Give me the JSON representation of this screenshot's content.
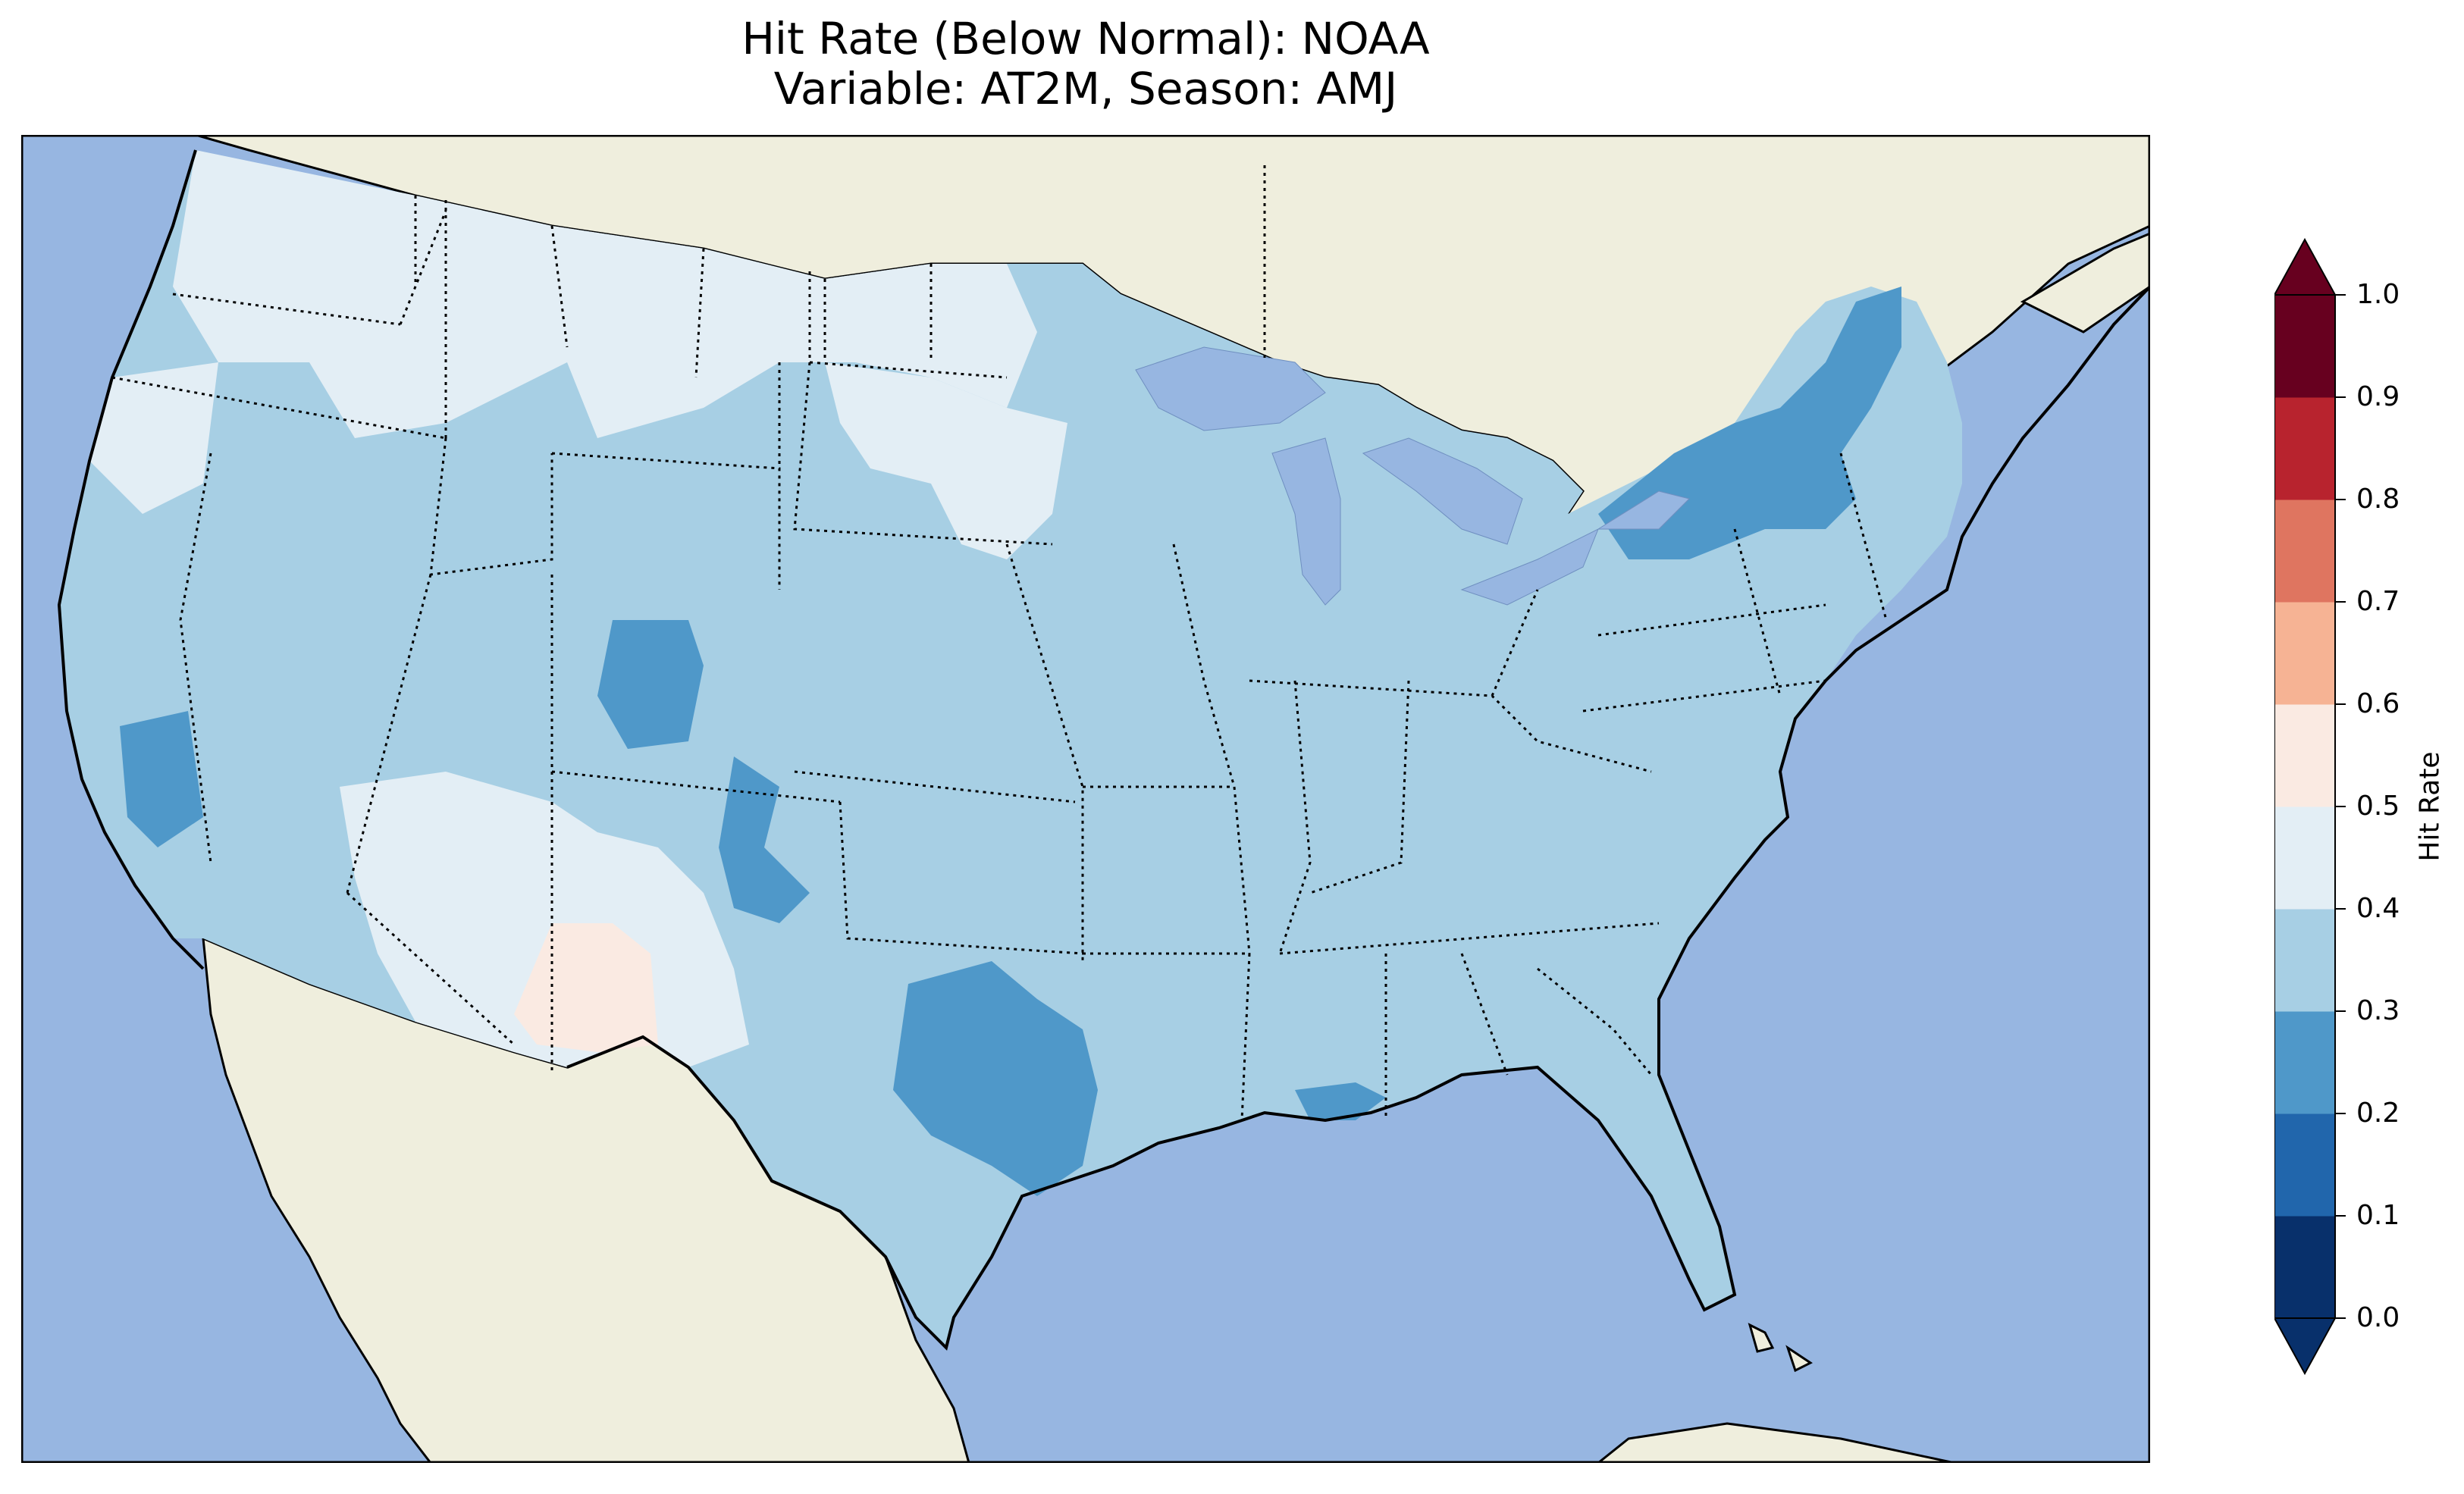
{
  "title": {
    "line1": "Hit Rate (Below Normal): NOAA",
    "line2": "Variable: AT2M, Season: AMJ"
  },
  "colorbar": {
    "label": "Hit Rate",
    "ticks": [
      "0.0",
      "0.1",
      "0.2",
      "0.3",
      "0.4",
      "0.5",
      "0.6",
      "0.7",
      "0.8",
      "0.9",
      "1.0"
    ],
    "colors": [
      "#08306b",
      "#2166ac",
      "#4f98c9",
      "#a7cfe4",
      "#e3eef5",
      "#faeae2",
      "#f6b394",
      "#df7560",
      "#b8232e",
      "#67001f"
    ],
    "extend": "both",
    "range": [
      0.0,
      1.0
    ]
  },
  "map": {
    "region": "Continental United States",
    "ocean_color": "#97b6e1",
    "land_color": "#efeedd",
    "dominant_value_range": [
      0.3,
      0.4
    ],
    "regions": [
      {
        "name": "base-conus",
        "value_bin": [
          0.3,
          0.4
        ]
      },
      {
        "name": "northwest-montana-band",
        "value_bin": [
          0.4,
          0.5
        ]
      },
      {
        "name": "pacific-northwest",
        "value_bin": [
          0.4,
          0.5
        ]
      },
      {
        "name": "dakotas",
        "value_bin": [
          0.4,
          0.5
        ]
      },
      {
        "name": "southwest-arizona",
        "value_bin": [
          0.4,
          0.5
        ]
      },
      {
        "name": "new-mexico-pink",
        "value_bin": [
          0.5,
          0.6
        ]
      },
      {
        "name": "colorado-rockies",
        "value_bin": [
          0.2,
          0.3
        ]
      },
      {
        "name": "central-california",
        "value_bin": [
          0.2,
          0.3
        ]
      },
      {
        "name": "north-texas",
        "value_bin": [
          0.2,
          0.3
        ]
      },
      {
        "name": "new-york-new-england",
        "value_bin": [
          0.2,
          0.3
        ]
      },
      {
        "name": "louisiana-coast",
        "value_bin": [
          0.2,
          0.3
        ]
      }
    ]
  }
}
